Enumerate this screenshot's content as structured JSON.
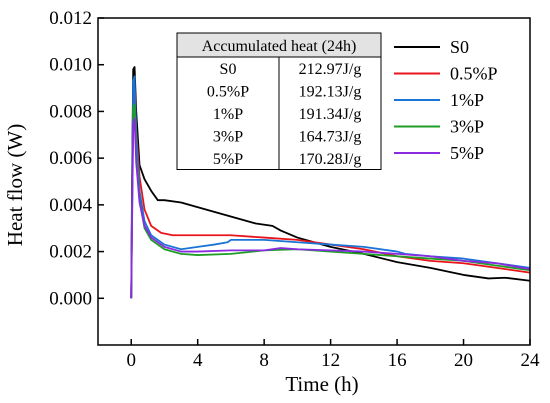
{
  "chart_data": {
    "type": "line",
    "xlabel": "Time (h)",
    "ylabel": "Heat flow (W)",
    "xlim": [
      -2,
      24
    ],
    "ylim": [
      -0.002,
      0.012
    ],
    "x_ticks": [
      "0",
      "4",
      "8",
      "12",
      "16",
      "20",
      "24"
    ],
    "y_ticks": [
      "0.000",
      "0.002",
      "0.004",
      "0.006",
      "0.008",
      "0.010",
      "0.012"
    ],
    "legend_position": "top-right",
    "series": [
      {
        "name": "S0",
        "color": "#000000",
        "points": [
          [
            0,
            0.0
          ],
          [
            0.05,
            0.005
          ],
          [
            0.12,
            0.0098
          ],
          [
            0.2,
            0.0099
          ],
          [
            0.3,
            0.008
          ],
          [
            0.5,
            0.0057
          ],
          [
            0.8,
            0.0051
          ],
          [
            1.2,
            0.0046
          ],
          [
            1.6,
            0.0042
          ],
          [
            2,
            0.0042
          ],
          [
            3,
            0.0041
          ],
          [
            5,
            0.0037
          ],
          [
            6.5,
            0.0034
          ],
          [
            7.5,
            0.0032
          ],
          [
            8.5,
            0.0031
          ],
          [
            9,
            0.0029
          ],
          [
            10,
            0.0026
          ],
          [
            11,
            0.0024
          ],
          [
            12,
            0.0022
          ],
          [
            14,
            0.0019
          ],
          [
            16,
            0.00155
          ],
          [
            18,
            0.0013
          ],
          [
            20,
            0.001
          ],
          [
            21.5,
            0.00085
          ],
          [
            22.5,
            0.00088
          ],
          [
            24,
            0.00075
          ]
        ]
      },
      {
        "name": "0.5%P",
        "color": "#e8141b",
        "points": [
          [
            0,
            0.0
          ],
          [
            0.05,
            0.004
          ],
          [
            0.12,
            0.0085
          ],
          [
            0.2,
            0.0088
          ],
          [
            0.3,
            0.0072
          ],
          [
            0.5,
            0.0052
          ],
          [
            0.8,
            0.0038
          ],
          [
            1.2,
            0.0031
          ],
          [
            1.8,
            0.0028
          ],
          [
            2.5,
            0.0027
          ],
          [
            4,
            0.0027
          ],
          [
            6,
            0.0027
          ],
          [
            8,
            0.0026
          ],
          [
            10,
            0.0025
          ],
          [
            12,
            0.0023
          ],
          [
            14,
            0.0021
          ],
          [
            16,
            0.0018
          ],
          [
            18,
            0.0016
          ],
          [
            20,
            0.0015
          ],
          [
            22,
            0.0013
          ],
          [
            24,
            0.0011
          ]
        ]
      },
      {
        "name": "1%P",
        "color": "#1a74d6",
        "points": [
          [
            0,
            0.0
          ],
          [
            0.05,
            0.004
          ],
          [
            0.12,
            0.0093
          ],
          [
            0.2,
            0.0095
          ],
          [
            0.3,
            0.007
          ],
          [
            0.5,
            0.0046
          ],
          [
            0.8,
            0.0033
          ],
          [
            1.2,
            0.0027
          ],
          [
            2,
            0.0023
          ],
          [
            3,
            0.0021
          ],
          [
            4,
            0.0022
          ],
          [
            5,
            0.0023
          ],
          [
            5.8,
            0.0024
          ],
          [
            6,
            0.0025
          ],
          [
            8,
            0.0025
          ],
          [
            10,
            0.0024
          ],
          [
            12,
            0.0023
          ],
          [
            14,
            0.0022
          ],
          [
            16,
            0.002
          ],
          [
            16.5,
            0.0019
          ],
          [
            18,
            0.0018
          ],
          [
            20,
            0.0017
          ],
          [
            22,
            0.0015
          ],
          [
            24,
            0.0013
          ]
        ]
      },
      {
        "name": "3%P",
        "color": "#1e9e25",
        "points": [
          [
            0,
            0.0
          ],
          [
            0.05,
            0.0035
          ],
          [
            0.12,
            0.0082
          ],
          [
            0.2,
            0.0083
          ],
          [
            0.3,
            0.0062
          ],
          [
            0.5,
            0.0042
          ],
          [
            0.8,
            0.003
          ],
          [
            1.2,
            0.0025
          ],
          [
            2,
            0.0021
          ],
          [
            3,
            0.0019
          ],
          [
            4,
            0.00185
          ],
          [
            6,
            0.0019
          ],
          [
            8,
            0.00205
          ],
          [
            10,
            0.0021
          ],
          [
            12,
            0.002
          ],
          [
            14,
            0.0019
          ],
          [
            16,
            0.0018
          ],
          [
            18,
            0.0017
          ],
          [
            20,
            0.0016
          ],
          [
            22,
            0.0014
          ],
          [
            24,
            0.0012
          ]
        ]
      },
      {
        "name": "5%P",
        "color": "#8a2be2",
        "points": [
          [
            0,
            0.0
          ],
          [
            0.05,
            0.0032
          ],
          [
            0.12,
            0.0075
          ],
          [
            0.2,
            0.0077
          ],
          [
            0.3,
            0.0058
          ],
          [
            0.5,
            0.0041
          ],
          [
            0.8,
            0.0031
          ],
          [
            1.2,
            0.0026
          ],
          [
            2,
            0.0022
          ],
          [
            3,
            0.002
          ],
          [
            4,
            0.002
          ],
          [
            6,
            0.00205
          ],
          [
            8,
            0.00205
          ],
          [
            9,
            0.00215
          ],
          [
            10,
            0.0021
          ],
          [
            12,
            0.00205
          ],
          [
            14,
            0.002
          ],
          [
            16,
            0.0019
          ],
          [
            18,
            0.0018
          ],
          [
            20,
            0.0016
          ],
          [
            22,
            0.0015
          ],
          [
            24,
            0.00125
          ]
        ]
      }
    ],
    "table": {
      "header": "Accumulated heat (24h)",
      "rows": [
        [
          "S0",
          "212.97J/g"
        ],
        [
          "0.5%P",
          "192.13J/g"
        ],
        [
          "1%P",
          "191.34J/g"
        ],
        [
          "3%P",
          "164.73J/g"
        ],
        [
          "5%P",
          "170.28J/g"
        ]
      ]
    }
  }
}
